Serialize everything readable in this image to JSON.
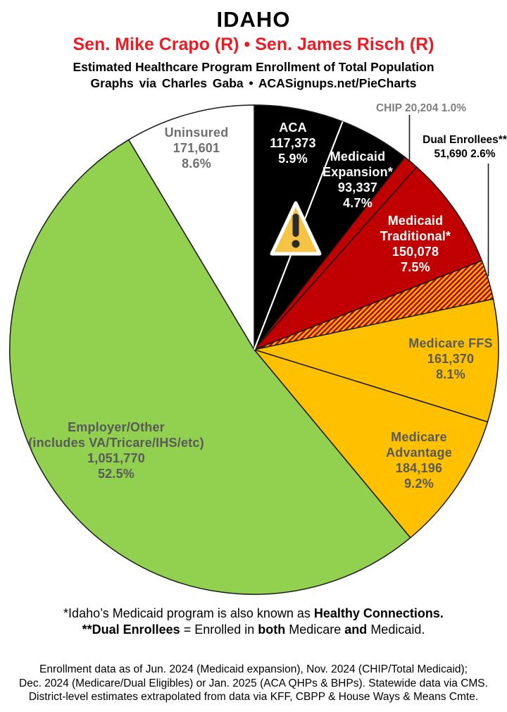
{
  "header": {
    "state": "IDAHO",
    "senators": "Sen. Mike Crapo (R) • Sen. James Risch (R)",
    "senators_color": "#ED1C24",
    "subtitle1": "Estimated Healthcare Program Enrollment of Total Population",
    "subtitle2": "Graphs via Charles Gaba • ACASignups.net/PieCharts"
  },
  "chart_data": {
    "type": "pie",
    "title": "IDAHO — Estimated Healthcare Program Enrollment of Total Population",
    "direction": "clockwise",
    "start_angle": "12 o'clock",
    "legend": "labels on slices",
    "slices": [
      {
        "id": "aca",
        "label": "ACA",
        "enrollment": "117,373",
        "pct": 5.9,
        "pct_label": "5.9%",
        "fill": "#000000",
        "text_color": "#FFFFFF",
        "lines": [
          "ACA",
          "117,373",
          "5.9%"
        ]
      },
      {
        "id": "medicaid-expansion",
        "label": "Medicaid Expansion*",
        "enrollment": "93,337",
        "pct": 4.7,
        "pct_label": "4.7%",
        "fill": "#000000",
        "text_color": "#FFFFFF",
        "lines": [
          "Medicaid",
          "Expansion*",
          "93,337",
          "4.7%"
        ]
      },
      {
        "id": "chip",
        "label": "CHIP",
        "enrollment": "20,204",
        "pct": 1.0,
        "pct_label": "1.0%",
        "fill": "#C00000",
        "text_color": "#7F7F7F",
        "callout": "CHIP 20,204 1.0%"
      },
      {
        "id": "medicaid-traditional",
        "label": "Medicaid Traditional*",
        "enrollment": "150,078",
        "pct": 7.5,
        "pct_label": "7.5%",
        "fill": "#C00000",
        "text_color": "#FFFFFF",
        "lines": [
          "Medicaid",
          "Traditional*",
          "150,078",
          "7.5%"
        ]
      },
      {
        "id": "dual-enrollees",
        "label": "Dual Enrollees**",
        "enrollment": "51,690",
        "pct": 2.6,
        "pct_label": "2.6%",
        "fill": "hatch",
        "hatch_colors": [
          "#C00000",
          "#FFC000"
        ],
        "text_color": "#000000",
        "callout_lines": [
          "Dual Enrollees**",
          "51,690 2.6%"
        ]
      },
      {
        "id": "medicare-ffs",
        "label": "Medicare FFS",
        "enrollment": "161,370",
        "pct": 8.1,
        "pct_label": "8.1%",
        "fill": "#FFC000",
        "text_color": "#595959",
        "lines": [
          "Medicare FFS",
          "161,370",
          "8.1%"
        ]
      },
      {
        "id": "medicare-advantage",
        "label": "Medicare Advantage",
        "enrollment": "184,196",
        "pct": 9.2,
        "pct_label": "9.2%",
        "fill": "#FFC000",
        "text_color": "#595959",
        "lines": [
          "Medicare",
          "Advantage",
          "184,196",
          "9.2%"
        ]
      },
      {
        "id": "employer-other",
        "label": "Employer/Other (includes VA/Tricare/IHS/etc)",
        "enrollment": "1,051,770",
        "pct": 52.5,
        "pct_label": "52.5%",
        "fill": "#92D050",
        "text_color": "#595959",
        "lines": [
          "Employer/Other",
          "(includes VA/Tricare/IHS/etc)",
          "1,051,770",
          "52.5%"
        ]
      },
      {
        "id": "uninsured",
        "label": "Uninsured",
        "enrollment": "171,601",
        "pct": 8.6,
        "pct_label": "8.6%",
        "fill": "#FFFFFF",
        "text_color": "#6E6E6E",
        "lines": [
          "Uninsured",
          "171,601",
          "8.6%"
        ]
      }
    ],
    "icons": [
      {
        "name": "warning-icon",
        "glyph": "exclamation-triangle",
        "fill": "#F6C444"
      }
    ]
  },
  "footnotes": {
    "line1": {
      "regular": "*Idaho’s Medicaid program is also known as ",
      "bold": "Healthy Connections."
    },
    "line2": {
      "bold1": "**Dual Enrollees",
      "regular1": " = Enrolled in ",
      "bold2": "both",
      "regular2": " Medicare ",
      "bold3": "and",
      "regular3": " Medicaid."
    }
  },
  "source_note": {
    "line1": "Enrollment data as of Jun. 2024 (Medicaid expansion), Nov. 2024 (CHIP/Total Medicaid);",
    "line2": "Dec. 2024 (Medicare/Dual Eligibles) or Jan. 2025 (ACA QHPs & BHPs). Statewide data via CMS.",
    "line3": "District-level estimates extrapolated from data via KFF, CBPP & House Ways & Means Cmte."
  }
}
